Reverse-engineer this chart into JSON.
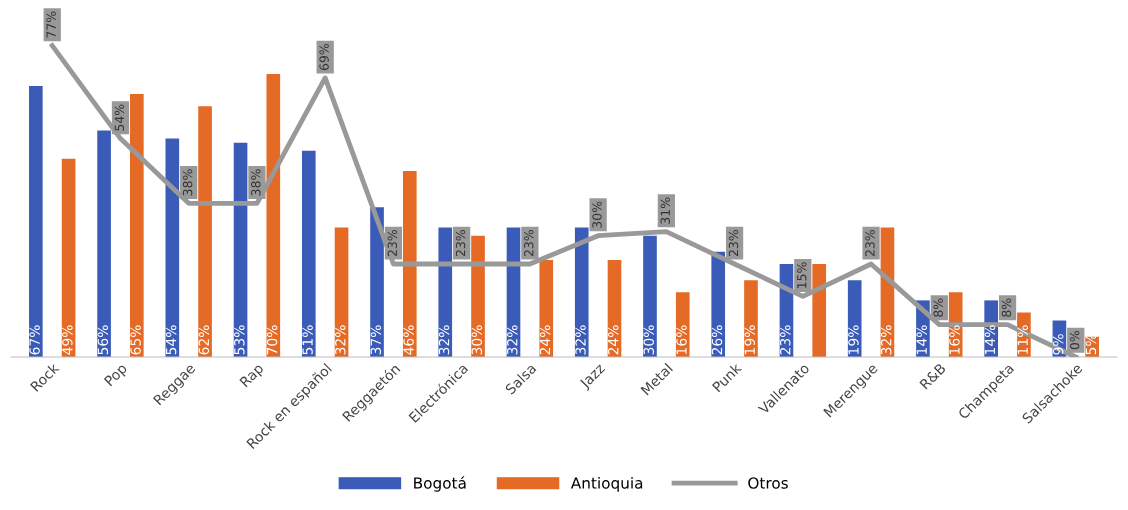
{
  "chart_data": {
    "type": "bar",
    "categories": [
      "Rock",
      "Pop",
      "Reggae",
      "Rap",
      "Rock en español",
      "Reggaetón",
      "Electrónica",
      "Salsa",
      "Jazz",
      "Metal",
      "Punk",
      "Vallenato",
      "Merengue",
      "R&B",
      "Champeta",
      "Salsachoke"
    ],
    "series": [
      {
        "name": "Bogotá",
        "color": "#3a5cb8",
        "values": [
          67,
          56,
          54,
          53,
          51,
          37,
          32,
          32,
          32,
          30,
          26,
          23,
          19,
          14,
          14,
          9
        ],
        "value_labels": [
          "67%",
          "56%",
          "54%",
          "53%",
          "51%",
          "37%",
          "32%",
          "32%",
          "32%",
          "30%",
          "26%",
          "23%",
          "19%",
          "14%",
          "14%",
          "9%"
        ]
      },
      {
        "name": "Antioquia",
        "color": "#e46a26",
        "values": [
          49,
          65,
          62,
          70,
          32,
          46,
          30,
          24,
          24,
          16,
          19,
          23,
          32,
          16,
          11,
          5
        ],
        "value_labels": [
          "49%",
          "65%",
          "62%",
          "70%",
          "32%",
          "46%",
          "30%",
          "24%",
          "24%",
          "16%",
          "19%",
          null,
          "32%",
          "16%",
          "11%",
          "5%"
        ]
      },
      {
        "name": "Otros",
        "type": "line",
        "color": "#999999",
        "values": [
          77,
          54,
          38,
          38,
          69,
          23,
          23,
          23,
          30,
          31,
          23,
          15,
          23,
          8,
          8,
          0
        ],
        "value_labels": [
          "77%",
          "54%",
          "38%",
          "38%",
          "69%",
          "23%",
          "23%",
          "23%",
          "30%",
          "31%",
          "23%",
          "15%",
          "23%",
          "8%",
          "8%",
          "0%"
        ]
      }
    ],
    "legend": "bottom",
    "line_style": "solid"
  }
}
